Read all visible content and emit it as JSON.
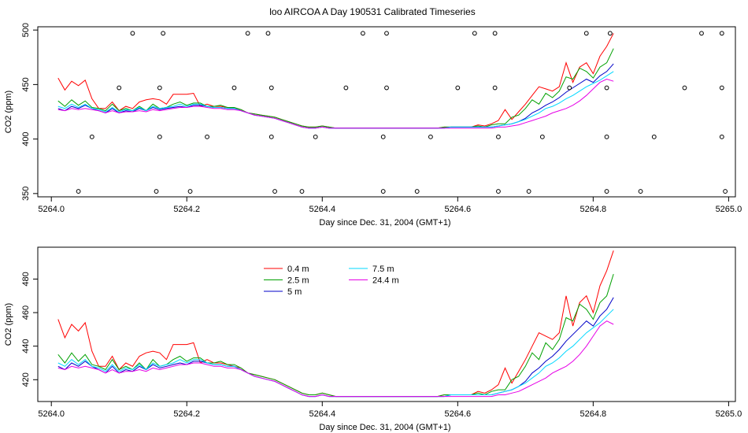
{
  "title": "loo AIRCOA A  Day 190531  Calibrated Timeseries",
  "colors": {
    "0.4 m": "#ff0000",
    "2.5 m": "#00a000",
    "5 m": "#0000c8",
    "7.5 m": "#00d8ff",
    "24.4 m": "#e600e6"
  },
  "chart_data": [
    {
      "type": "line",
      "panel": "top",
      "xlabel": "Day since Dec. 31, 2004 (GMT+1)",
      "ylabel": "CO2 (ppm)",
      "xlim": [
        5263.98,
        5265.01
      ],
      "ylim": [
        347,
        503
      ],
      "xticks": [
        "5264.0",
        "5264.2",
        "5264.4",
        "5264.6",
        "5264.8",
        "5265.0"
      ],
      "yticks": [
        "350",
        "400",
        "450",
        "500"
      ],
      "grid": false,
      "x_start": 5264.01,
      "x_step": 0.01,
      "series": [
        {
          "name": "0.4 m",
          "color": "#ff0000",
          "values": [
            456,
            445,
            453,
            449,
            454,
            437,
            428,
            428,
            434,
            426,
            430,
            428,
            434,
            436,
            437,
            436,
            432,
            441,
            441,
            441,
            442,
            430,
            432,
            430,
            430,
            429,
            428,
            427,
            424,
            423,
            422,
            421,
            420,
            418,
            416,
            414,
            412,
            411,
            411,
            412,
            411,
            410,
            410,
            410,
            410,
            410,
            410,
            410,
            410,
            410,
            410,
            410,
            410,
            410,
            410,
            410,
            410,
            411,
            411,
            411,
            411,
            411,
            413,
            412,
            414,
            417,
            427,
            418,
            425,
            432,
            440,
            448,
            446,
            444,
            448,
            470,
            452,
            466,
            470,
            460,
            476,
            485,
            497
          ]
        },
        {
          "name": "2.5 m",
          "color": "#00a000",
          "values": [
            435,
            430,
            436,
            431,
            435,
            429,
            428,
            426,
            432,
            426,
            428,
            426,
            430,
            426,
            432,
            428,
            429,
            432,
            434,
            431,
            433,
            433,
            430,
            430,
            431,
            429,
            429,
            427,
            424,
            423,
            422,
            421,
            420,
            418,
            416,
            414,
            412,
            411,
            411,
            412,
            411,
            410,
            410,
            410,
            410,
            410,
            410,
            410,
            410,
            410,
            410,
            410,
            410,
            410,
            410,
            410,
            410,
            411,
            411,
            411,
            411,
            411,
            412,
            411,
            413,
            414,
            414,
            420,
            422,
            428,
            436,
            432,
            442,
            438,
            444,
            457,
            455,
            465,
            462,
            456,
            466,
            470,
            483
          ]
        },
        {
          "name": "5 m",
          "color": "#0000c8",
          "values": [
            428,
            426,
            430,
            428,
            431,
            428,
            426,
            424,
            428,
            424,
            426,
            425,
            428,
            426,
            429,
            427,
            428,
            429,
            430,
            429,
            431,
            431,
            430,
            429,
            429,
            428,
            428,
            426,
            424,
            422,
            421,
            420,
            419,
            417,
            415,
            413,
            411,
            410,
            410,
            411,
            410,
            410,
            410,
            410,
            410,
            410,
            410,
            410,
            410,
            410,
            410,
            410,
            410,
            410,
            410,
            410,
            410,
            410,
            411,
            411,
            411,
            411,
            411,
            411,
            411,
            412,
            413,
            414,
            416,
            419,
            424,
            427,
            431,
            434,
            438,
            443,
            447,
            451,
            455,
            452,
            458,
            462,
            469
          ]
        },
        {
          "name": "7.5 m",
          "color": "#00d8ff",
          "values": [
            430,
            428,
            432,
            429,
            432,
            428,
            427,
            425,
            429,
            425,
            427,
            426,
            429,
            426,
            430,
            428,
            429,
            430,
            432,
            430,
            432,
            432,
            430,
            429,
            429,
            428,
            428,
            426,
            424,
            422,
            421,
            420,
            419,
            417,
            415,
            413,
            411,
            410,
            410,
            411,
            410,
            410,
            410,
            410,
            410,
            410,
            410,
            410,
            410,
            410,
            410,
            410,
            410,
            410,
            410,
            410,
            410,
            410,
            411,
            411,
            411,
            411,
            411,
            411,
            411,
            412,
            413,
            414,
            416,
            418,
            421,
            424,
            428,
            430,
            433,
            437,
            440,
            444,
            448,
            451,
            454,
            458,
            462
          ]
        },
        {
          "name": "24.4 m",
          "color": "#e600e6",
          "values": [
            427,
            426,
            428,
            427,
            428,
            427,
            426,
            424,
            426,
            424,
            425,
            425,
            426,
            425,
            427,
            426,
            427,
            428,
            429,
            429,
            430,
            430,
            429,
            428,
            428,
            427,
            427,
            426,
            424,
            422,
            421,
            420,
            419,
            417,
            415,
            413,
            411,
            410,
            410,
            411,
            410,
            410,
            410,
            410,
            410,
            410,
            410,
            410,
            410,
            410,
            410,
            410,
            410,
            410,
            410,
            410,
            410,
            410,
            410,
            410,
            410,
            410,
            410,
            410,
            410,
            411,
            411,
            412,
            413,
            415,
            417,
            419,
            421,
            424,
            426,
            428,
            431,
            435,
            440,
            446,
            452,
            455,
            453
          ]
        }
      ],
      "flag_points": [
        {
          "x": 5264.04,
          "y": 352
        },
        {
          "x": 5264.06,
          "y": 402
        },
        {
          "x": 5264.1,
          "y": 447
        },
        {
          "x": 5264.12,
          "y": 497
        },
        {
          "x": 5264.155,
          "y": 352
        },
        {
          "x": 5264.16,
          "y": 402
        },
        {
          "x": 5264.16,
          "y": 447
        },
        {
          "x": 5264.165,
          "y": 497
        },
        {
          "x": 5264.205,
          "y": 352
        },
        {
          "x": 5264.23,
          "y": 402
        },
        {
          "x": 5264.27,
          "y": 447
        },
        {
          "x": 5264.29,
          "y": 497
        },
        {
          "x": 5264.32,
          "y": 497
        },
        {
          "x": 5264.325,
          "y": 447
        },
        {
          "x": 5264.325,
          "y": 402
        },
        {
          "x": 5264.33,
          "y": 352
        },
        {
          "x": 5264.37,
          "y": 352
        },
        {
          "x": 5264.39,
          "y": 402
        },
        {
          "x": 5264.435,
          "y": 447
        },
        {
          "x": 5264.46,
          "y": 497
        },
        {
          "x": 5264.49,
          "y": 352
        },
        {
          "x": 5264.49,
          "y": 402
        },
        {
          "x": 5264.495,
          "y": 447
        },
        {
          "x": 5264.495,
          "y": 497
        },
        {
          "x": 5264.54,
          "y": 352
        },
        {
          "x": 5264.56,
          "y": 402
        },
        {
          "x": 5264.6,
          "y": 447
        },
        {
          "x": 5264.625,
          "y": 497
        },
        {
          "x": 5264.655,
          "y": 497
        },
        {
          "x": 5264.655,
          "y": 447
        },
        {
          "x": 5264.66,
          "y": 402
        },
        {
          "x": 5264.66,
          "y": 352
        },
        {
          "x": 5264.705,
          "y": 352
        },
        {
          "x": 5264.725,
          "y": 402
        },
        {
          "x": 5264.765,
          "y": 447
        },
        {
          "x": 5264.79,
          "y": 497
        },
        {
          "x": 5264.82,
          "y": 352
        },
        {
          "x": 5264.82,
          "y": 402
        },
        {
          "x": 5264.82,
          "y": 447
        },
        {
          "x": 5264.825,
          "y": 497
        },
        {
          "x": 5264.87,
          "y": 352
        },
        {
          "x": 5264.89,
          "y": 402
        },
        {
          "x": 5264.935,
          "y": 447
        },
        {
          "x": 5264.96,
          "y": 497
        },
        {
          "x": 5264.99,
          "y": 497
        },
        {
          "x": 5264.99,
          "y": 447
        },
        {
          "x": 5264.99,
          "y": 402
        },
        {
          "x": 5264.995,
          "y": 352
        }
      ]
    },
    {
      "type": "line",
      "panel": "bottom",
      "xlabel": "Day since Dec. 31, 2004 (GMT+1)",
      "ylabel": "CO2 (ppm)",
      "xlim": [
        5263.98,
        5265.01
      ],
      "ylim": [
        407,
        499
      ],
      "xticks": [
        "5264.0",
        "5264.2",
        "5264.4",
        "5264.6",
        "5264.8",
        "5265.0"
      ],
      "yticks": [
        "420",
        "440",
        "460",
        "480"
      ],
      "grid": false,
      "legend_placement": "top-left",
      "legend": [
        "0.4 m",
        "2.5 m",
        "5 m",
        "7.5 m",
        "24.4 m"
      ],
      "x_start": 5264.01,
      "x_step": 0.01,
      "series": [
        {
          "name": "0.4 m",
          "color": "#ff0000",
          "values": [
            456,
            445,
            453,
            449,
            454,
            437,
            428,
            428,
            434,
            426,
            430,
            428,
            434,
            436,
            437,
            436,
            432,
            441,
            441,
            441,
            442,
            430,
            432,
            430,
            430,
            429,
            428,
            427,
            424,
            423,
            422,
            421,
            420,
            418,
            416,
            414,
            412,
            411,
            411,
            412,
            411,
            410,
            410,
            410,
            410,
            410,
            410,
            410,
            410,
            410,
            410,
            410,
            410,
            410,
            410,
            410,
            410,
            411,
            411,
            411,
            411,
            411,
            413,
            412,
            414,
            417,
            427,
            418,
            425,
            432,
            440,
            448,
            446,
            444,
            448,
            470,
            452,
            466,
            470,
            460,
            476,
            485,
            497
          ]
        },
        {
          "name": "2.5 m",
          "color": "#00a000",
          "values": [
            435,
            430,
            436,
            431,
            435,
            429,
            428,
            426,
            432,
            426,
            428,
            426,
            430,
            426,
            432,
            428,
            429,
            432,
            434,
            431,
            433,
            433,
            430,
            430,
            431,
            429,
            429,
            427,
            424,
            423,
            422,
            421,
            420,
            418,
            416,
            414,
            412,
            411,
            411,
            412,
            411,
            410,
            410,
            410,
            410,
            410,
            410,
            410,
            410,
            410,
            410,
            410,
            410,
            410,
            410,
            410,
            410,
            411,
            411,
            411,
            411,
            411,
            412,
            411,
            413,
            414,
            414,
            420,
            422,
            428,
            436,
            432,
            442,
            438,
            444,
            457,
            455,
            465,
            462,
            456,
            466,
            470,
            483
          ]
        },
        {
          "name": "5 m",
          "color": "#0000c8",
          "values": [
            428,
            426,
            430,
            428,
            431,
            428,
            426,
            424,
            428,
            424,
            426,
            425,
            428,
            426,
            429,
            427,
            428,
            429,
            430,
            429,
            431,
            431,
            430,
            429,
            429,
            428,
            428,
            426,
            424,
            422,
            421,
            420,
            419,
            417,
            415,
            413,
            411,
            410,
            410,
            411,
            410,
            410,
            410,
            410,
            410,
            410,
            410,
            410,
            410,
            410,
            410,
            410,
            410,
            410,
            410,
            410,
            410,
            410,
            411,
            411,
            411,
            411,
            411,
            411,
            411,
            412,
            413,
            414,
            416,
            419,
            424,
            427,
            431,
            434,
            438,
            443,
            447,
            451,
            455,
            452,
            458,
            462,
            469
          ]
        },
        {
          "name": "7.5 m",
          "color": "#00d8ff",
          "values": [
            430,
            428,
            432,
            429,
            432,
            428,
            427,
            425,
            429,
            425,
            427,
            426,
            429,
            426,
            430,
            428,
            429,
            430,
            432,
            430,
            432,
            432,
            430,
            429,
            429,
            428,
            428,
            426,
            424,
            422,
            421,
            420,
            419,
            417,
            415,
            413,
            411,
            410,
            410,
            411,
            410,
            410,
            410,
            410,
            410,
            410,
            410,
            410,
            410,
            410,
            410,
            410,
            410,
            410,
            410,
            410,
            410,
            410,
            411,
            411,
            411,
            411,
            411,
            411,
            411,
            412,
            413,
            414,
            416,
            418,
            421,
            424,
            428,
            430,
            433,
            437,
            440,
            444,
            448,
            451,
            454,
            458,
            462
          ]
        },
        {
          "name": "24.4 m",
          "color": "#e600e6",
          "values": [
            427,
            426,
            428,
            427,
            428,
            427,
            426,
            424,
            426,
            424,
            425,
            425,
            426,
            425,
            427,
            426,
            427,
            428,
            429,
            429,
            430,
            430,
            429,
            428,
            428,
            427,
            427,
            426,
            424,
            422,
            421,
            420,
            419,
            417,
            415,
            413,
            411,
            410,
            410,
            411,
            410,
            410,
            410,
            410,
            410,
            410,
            410,
            410,
            410,
            410,
            410,
            410,
            410,
            410,
            410,
            410,
            410,
            410,
            410,
            410,
            410,
            410,
            410,
            410,
            410,
            411,
            411,
            412,
            413,
            415,
            417,
            419,
            421,
            424,
            426,
            428,
            431,
            435,
            440,
            446,
            452,
            455,
            453
          ]
        }
      ]
    }
  ]
}
